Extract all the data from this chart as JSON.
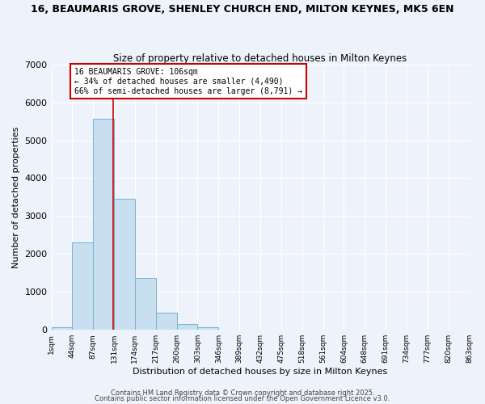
{
  "title": "16, BEAUMARIS GROVE, SHENLEY CHURCH END, MILTON KEYNES, MK5 6EN",
  "subtitle": "Size of property relative to detached houses in Milton Keynes",
  "xlabel": "Distribution of detached houses by size in Milton Keynes",
  "ylabel": "Number of detached properties",
  "bar_values": [
    75,
    2300,
    5570,
    3450,
    1360,
    460,
    160,
    60,
    10,
    0,
    0,
    0,
    0,
    0,
    0,
    0,
    0,
    0,
    0,
    0
  ],
  "bin_labels": [
    "1sqm",
    "44sqm",
    "87sqm",
    "131sqm",
    "174sqm",
    "217sqm",
    "260sqm",
    "303sqm",
    "346sqm",
    "389sqm",
    "432sqm",
    "475sqm",
    "518sqm",
    "561sqm",
    "604sqm",
    "648sqm",
    "691sqm",
    "734sqm",
    "777sqm",
    "820sqm",
    "863sqm"
  ],
  "bar_color": "#c8dff0",
  "bar_edge_color": "#7ab0d4",
  "background_color": "#eef2fa",
  "grid_color": "#ffffff",
  "vline_color": "#cc0000",
  "annotation_text": "16 BEAUMARIS GROVE: 106sqm\n← 34% of detached houses are smaller (4,490)\n66% of semi-detached houses are larger (8,791) →",
  "annotation_box_color": "#cc0000",
  "ylim": [
    0,
    7000
  ],
  "yticks": [
    0,
    1000,
    2000,
    3000,
    4000,
    5000,
    6000,
    7000
  ],
  "footer1": "Contains HM Land Registry data © Crown copyright and database right 2025.",
  "footer2": "Contains public sector information licensed under the Open Government Licence v3.0."
}
